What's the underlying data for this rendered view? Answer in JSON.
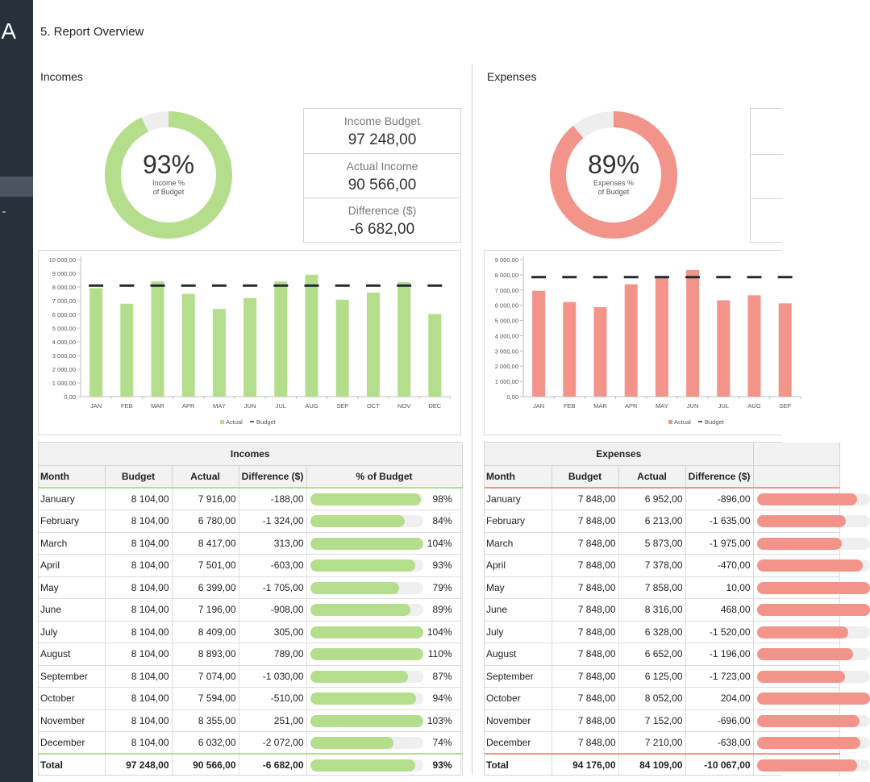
{
  "app": {
    "logo": "A"
  },
  "page": {
    "title": "5. Report Overview"
  },
  "incomes": {
    "title": "Incomes",
    "accent": "#b4de8c",
    "track": "#eeeeee",
    "donut": {
      "percent": 93,
      "pct_label": "93%",
      "sub1": "Income %",
      "sub2": "of Budget"
    },
    "kpis": [
      {
        "label": "Income Budget",
        "value": "97 248,00"
      },
      {
        "label": "Actual Income",
        "value": "90 566,00"
      },
      {
        "label": "Difference ($)",
        "value": "-6 682,00"
      }
    ]
  },
  "expenses": {
    "title": "Expenses",
    "accent": "#f2948a",
    "track": "#eeeeee",
    "donut": {
      "percent": 89,
      "pct_label": "89%",
      "sub1": "Expenses %",
      "sub2": "of Budget"
    }
  },
  "chart_data": [
    {
      "type": "bar",
      "title": "Incomes",
      "categories": [
        "JAN",
        "FEB",
        "MAR",
        "APR",
        "MAY",
        "JUN",
        "JUL",
        "AUG",
        "SEP",
        "OCT",
        "NOV",
        "DEC"
      ],
      "series": [
        {
          "name": "Actual",
          "values": [
            7916,
            6780,
            8417,
            7501,
            6399,
            7196,
            8409,
            8893,
            7074,
            7594,
            8355,
            6032
          ]
        },
        {
          "name": "Budget",
          "values": [
            8104,
            8104,
            8104,
            8104,
            8104,
            8104,
            8104,
            8104,
            8104,
            8104,
            8104,
            8104
          ]
        }
      ],
      "y_ticks": [
        "0,00",
        "1 000,00",
        "2 000,00",
        "3 000,00",
        "4 000,00",
        "5 000,00",
        "6 000,00",
        "7 000,00",
        "8 000,00",
        "9 000,00",
        "10 000,00"
      ],
      "ylim": [
        0,
        10000
      ],
      "legend": [
        "Actual",
        "Budget"
      ],
      "legend_position": "bottom",
      "bar_color": "#b4de8c"
    },
    {
      "type": "bar",
      "title": "Expenses",
      "categories": [
        "JAN",
        "FEB",
        "MAR",
        "APR",
        "MAY",
        "JUN",
        "JUL",
        "AUG",
        "SEP"
      ],
      "series": [
        {
          "name": "Actual",
          "values": [
            6952,
            6213,
            5873,
            7378,
            7858,
            8316,
            6328,
            6652,
            6125
          ]
        },
        {
          "name": "Budget",
          "values": [
            7848,
            7848,
            7848,
            7848,
            7848,
            7848,
            7848,
            7848,
            7848
          ]
        }
      ],
      "y_ticks": [
        "0,00",
        "1 000,00",
        "2 000,00",
        "3 000,00",
        "4 000,00",
        "5 000,00",
        "6 000,00",
        "7 000,00",
        "8 000,00",
        "9 000,00"
      ],
      "ylim": [
        0,
        9000
      ],
      "legend": [
        "Actual",
        "Budget"
      ],
      "legend_position": "bottom",
      "bar_color": "#f2948a"
    }
  ],
  "income_table": {
    "title": "Incomes",
    "headers": [
      "Month",
      "Budget",
      "Actual",
      "Difference ($)",
      "% of Budget"
    ],
    "rows": [
      {
        "month": "January",
        "budget": "8 104,00",
        "actual": "7 916,00",
        "diff": "-188,00",
        "pct": 98,
        "pct_label": "98%"
      },
      {
        "month": "February",
        "budget": "8 104,00",
        "actual": "6 780,00",
        "diff": "-1 324,00",
        "pct": 84,
        "pct_label": "84%"
      },
      {
        "month": "March",
        "budget": "8 104,00",
        "actual": "8 417,00",
        "diff": "313,00",
        "pct": 104,
        "pct_label": "104%"
      },
      {
        "month": "April",
        "budget": "8 104,00",
        "actual": "7 501,00",
        "diff": "-603,00",
        "pct": 93,
        "pct_label": "93%"
      },
      {
        "month": "May",
        "budget": "8 104,00",
        "actual": "6 399,00",
        "diff": "-1 705,00",
        "pct": 79,
        "pct_label": "79%"
      },
      {
        "month": "June",
        "budget": "8 104,00",
        "actual": "7 196,00",
        "diff": "-908,00",
        "pct": 89,
        "pct_label": "89%"
      },
      {
        "month": "July",
        "budget": "8 104,00",
        "actual": "8 409,00",
        "diff": "305,00",
        "pct": 104,
        "pct_label": "104%"
      },
      {
        "month": "August",
        "budget": "8 104,00",
        "actual": "8 893,00",
        "diff": "789,00",
        "pct": 110,
        "pct_label": "110%"
      },
      {
        "month": "September",
        "budget": "8 104,00",
        "actual": "7 074,00",
        "diff": "-1 030,00",
        "pct": 87,
        "pct_label": "87%"
      },
      {
        "month": "October",
        "budget": "8 104,00",
        "actual": "7 594,00",
        "diff": "-510,00",
        "pct": 94,
        "pct_label": "94%"
      },
      {
        "month": "November",
        "budget": "8 104,00",
        "actual": "8 355,00",
        "diff": "251,00",
        "pct": 103,
        "pct_label": "103%"
      },
      {
        "month": "December",
        "budget": "8 104,00",
        "actual": "6 032,00",
        "diff": "-2 072,00",
        "pct": 74,
        "pct_label": "74%"
      }
    ],
    "total": {
      "month": "Total",
      "budget": "97 248,00",
      "actual": "90 566,00",
      "diff": "-6 682,00",
      "pct": 93,
      "pct_label": "93%"
    }
  },
  "expense_table": {
    "title": "Expenses",
    "headers": [
      "Month",
      "Budget",
      "Actual",
      "Difference ($)"
    ],
    "rows": [
      {
        "month": "January",
        "budget": "7 848,00",
        "actual": "6 952,00",
        "diff": "-896,00",
        "pct": 89
      },
      {
        "month": "February",
        "budget": "7 848,00",
        "actual": "6 213,00",
        "diff": "-1 635,00",
        "pct": 79
      },
      {
        "month": "March",
        "budget": "7 848,00",
        "actual": "5 873,00",
        "diff": "-1 975,00",
        "pct": 75
      },
      {
        "month": "April",
        "budget": "7 848,00",
        "actual": "7 378,00",
        "diff": "-470,00",
        "pct": 94
      },
      {
        "month": "May",
        "budget": "7 848,00",
        "actual": "7 858,00",
        "diff": "10,00",
        "pct": 100
      },
      {
        "month": "June",
        "budget": "7 848,00",
        "actual": "8 316,00",
        "diff": "468,00",
        "pct": 106
      },
      {
        "month": "July",
        "budget": "7 848,00",
        "actual": "6 328,00",
        "diff": "-1 520,00",
        "pct": 81
      },
      {
        "month": "August",
        "budget": "7 848,00",
        "actual": "6 652,00",
        "diff": "-1 196,00",
        "pct": 85
      },
      {
        "month": "September",
        "budget": "7 848,00",
        "actual": "6 125,00",
        "diff": "-1 723,00",
        "pct": 78
      },
      {
        "month": "October",
        "budget": "7 848,00",
        "actual": "8 052,00",
        "diff": "204,00",
        "pct": 103
      },
      {
        "month": "November",
        "budget": "7 848,00",
        "actual": "7 152,00",
        "diff": "-696,00",
        "pct": 91
      },
      {
        "month": "December",
        "budget": "7 848,00",
        "actual": "7 210,00",
        "diff": "-638,00",
        "pct": 92
      }
    ],
    "total": {
      "month": "Total",
      "budget": "94 176,00",
      "actual": "84 109,00",
      "diff": "-10 067,00",
      "pct": 89
    }
  }
}
